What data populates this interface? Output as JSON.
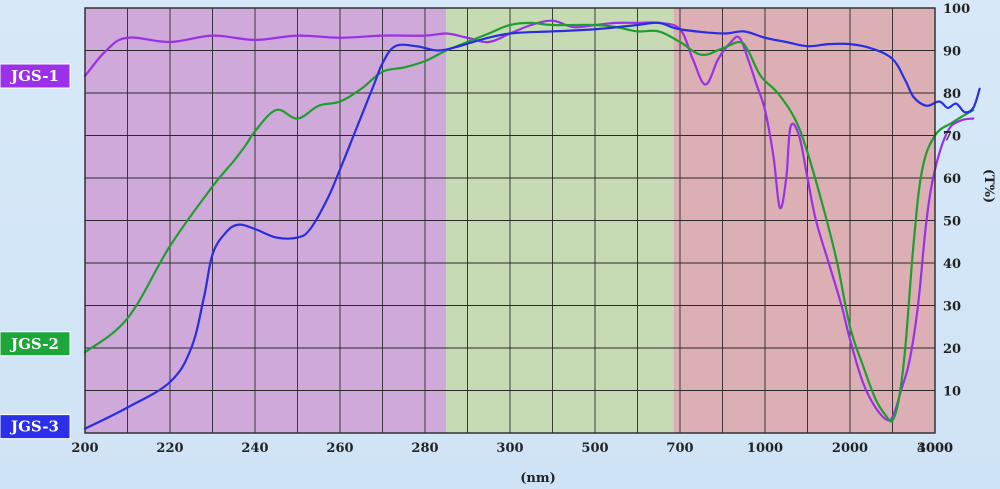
{
  "chart_data": {
    "type": "line",
    "xlabel": "(nm)",
    "ylabel": "(T%)",
    "ylim": [
      0,
      100
    ],
    "x_ticks": [
      "200",
      "220",
      "240",
      "260",
      "280",
      "300",
      "500",
      "700",
      "1000",
      "2000",
      "3000",
      "4000"
    ],
    "y_ticks": [
      "10",
      "20",
      "30",
      "40",
      "50",
      "60",
      "70",
      "80",
      "90",
      "100"
    ],
    "regions": [
      {
        "from": 0,
        "to": 8.5,
        "color": "#cfa9d9"
      },
      {
        "from": 8.5,
        "to": 13.85,
        "color": "#c6dbb4"
      },
      {
        "from": 13.85,
        "to": 20,
        "color": "#dbafb3"
      }
    ],
    "series": [
      {
        "name": "JGS-1",
        "color": "#9b30e8",
        "label_color": "#9b30e8",
        "points": [
          [
            0,
            84
          ],
          [
            0.5,
            90
          ],
          [
            1,
            93
          ],
          [
            2,
            92
          ],
          [
            3,
            93.5
          ],
          [
            4,
            92.5
          ],
          [
            5,
            93.5
          ],
          [
            6,
            93
          ],
          [
            7,
            93.5
          ],
          [
            8,
            93.5
          ],
          [
            8.5,
            94
          ],
          [
            9,
            93
          ],
          [
            9.5,
            92
          ],
          [
            10,
            94
          ],
          [
            10.5,
            96
          ],
          [
            11,
            97
          ],
          [
            11.5,
            95.5
          ],
          [
            12,
            96
          ],
          [
            12.5,
            96.5
          ],
          [
            13,
            96.5
          ],
          [
            13.5,
            96.5
          ],
          [
            14,
            95
          ],
          [
            14.3,
            88
          ],
          [
            14.6,
            82
          ],
          [
            14.9,
            88
          ],
          [
            15.2,
            92
          ],
          [
            15.4,
            93
          ],
          [
            15.6,
            88
          ],
          [
            15.8,
            82
          ],
          [
            16,
            76
          ],
          [
            16.2,
            65
          ],
          [
            16.35,
            53
          ],
          [
            16.5,
            60
          ],
          [
            16.6,
            72
          ],
          [
            16.8,
            70
          ],
          [
            17,
            60
          ],
          [
            17.2,
            50
          ],
          [
            17.5,
            40
          ],
          [
            17.8,
            30
          ],
          [
            18,
            22
          ],
          [
            18.3,
            12
          ],
          [
            18.6,
            6
          ],
          [
            18.9,
            3
          ],
          [
            19.05,
            5
          ],
          [
            19.2,
            10
          ],
          [
            19.4,
            17
          ],
          [
            19.6,
            30
          ],
          [
            19.8,
            50
          ],
          [
            20,
            62
          ],
          [
            20.3,
            71
          ],
          [
            20.6,
            73.5
          ],
          [
            20.9,
            74
          ]
        ]
      },
      {
        "name": "JGS-2",
        "color": "#1e9e2e",
        "label_color": "#1ea63a",
        "points": [
          [
            0,
            19
          ],
          [
            1,
            27
          ],
          [
            2,
            44
          ],
          [
            3,
            58
          ],
          [
            3.5,
            64
          ],
          [
            3.8,
            68
          ],
          [
            4,
            71
          ],
          [
            4.5,
            76
          ],
          [
            5,
            74
          ],
          [
            5.5,
            77
          ],
          [
            6,
            78
          ],
          [
            6.5,
            81
          ],
          [
            7,
            85
          ],
          [
            7.5,
            86
          ],
          [
            8,
            87.5
          ],
          [
            8.5,
            90
          ],
          [
            9,
            92
          ],
          [
            9.5,
            94
          ],
          [
            10,
            96
          ],
          [
            10.5,
            96.5
          ],
          [
            11,
            96
          ],
          [
            12,
            96
          ],
          [
            12.5,
            95.5
          ],
          [
            13,
            94.5
          ],
          [
            13.5,
            94.5
          ],
          [
            14,
            92
          ],
          [
            14.5,
            89
          ],
          [
            15,
            90.5
          ],
          [
            15.4,
            92
          ],
          [
            15.6,
            90
          ],
          [
            15.9,
            84
          ],
          [
            16.3,
            80
          ],
          [
            16.7,
            74
          ],
          [
            17,
            66
          ],
          [
            17.4,
            52
          ],
          [
            17.7,
            40
          ],
          [
            18,
            25
          ],
          [
            18.3,
            16
          ],
          [
            18.6,
            8
          ],
          [
            18.85,
            4
          ],
          [
            19,
            3
          ],
          [
            19.15,
            8
          ],
          [
            19.3,
            20
          ],
          [
            19.5,
            45
          ],
          [
            19.7,
            62
          ],
          [
            20,
            70
          ],
          [
            20.4,
            73
          ],
          [
            20.9,
            76
          ]
        ]
      },
      {
        "name": "JGS-3",
        "color": "#2a2ee0",
        "label_color": "#2b2fe8",
        "points": [
          [
            0,
            1
          ],
          [
            1,
            6
          ],
          [
            2,
            12
          ],
          [
            2.5,
            20
          ],
          [
            2.8,
            32
          ],
          [
            3,
            42
          ],
          [
            3.3,
            47
          ],
          [
            3.6,
            49
          ],
          [
            4,
            48
          ],
          [
            4.5,
            46
          ],
          [
            5,
            46
          ],
          [
            5.3,
            48
          ],
          [
            5.7,
            55
          ],
          [
            6,
            62
          ],
          [
            6.4,
            72
          ],
          [
            6.8,
            82
          ],
          [
            7,
            87
          ],
          [
            7.3,
            91
          ],
          [
            7.8,
            91
          ],
          [
            8.3,
            90
          ],
          [
            8.8,
            91
          ],
          [
            9.3,
            92.5
          ],
          [
            10,
            94
          ],
          [
            11,
            94.5
          ],
          [
            12,
            95
          ],
          [
            13,
            96
          ],
          [
            13.5,
            96.5
          ],
          [
            14,
            95
          ],
          [
            15,
            94
          ],
          [
            15.5,
            94.5
          ],
          [
            16,
            93
          ],
          [
            16.5,
            92
          ],
          [
            17,
            91
          ],
          [
            17.5,
            91.5
          ],
          [
            18,
            91.5
          ],
          [
            18.5,
            90.5
          ],
          [
            19,
            88
          ],
          [
            19.3,
            83
          ],
          [
            19.5,
            79
          ],
          [
            19.8,
            77
          ],
          [
            20.1,
            78
          ],
          [
            20.3,
            76.5
          ],
          [
            20.5,
            77.5
          ],
          [
            20.7,
            75.5
          ],
          [
            20.9,
            76.5
          ],
          [
            21.05,
            81
          ]
        ]
      }
    ]
  }
}
